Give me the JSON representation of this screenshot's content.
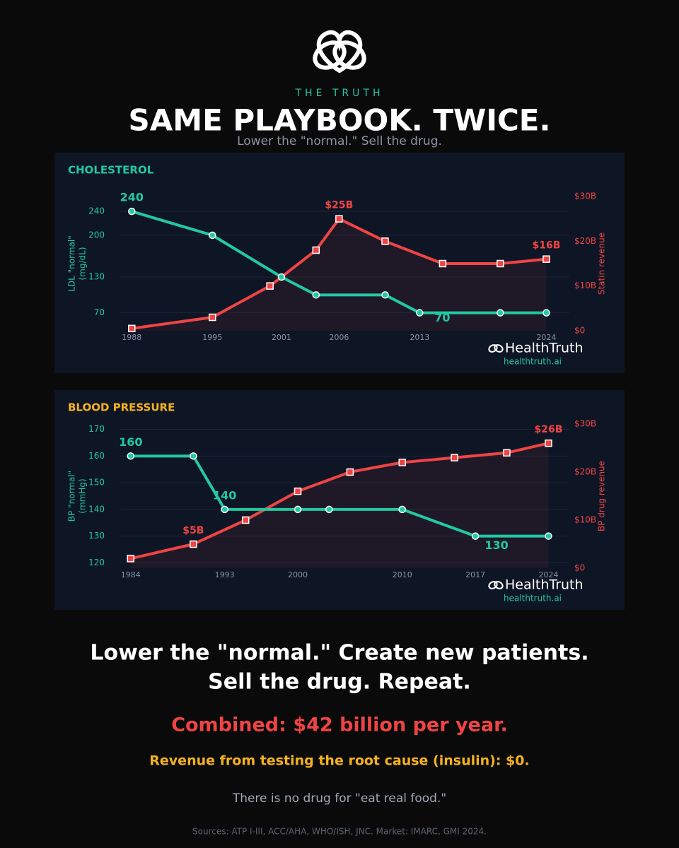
{
  "header": {
    "brand": "THE TRUTH",
    "title": "SAME PLAYBOOK. TWICE.",
    "subtitle": "Lower the \"normal.\" Sell the drug."
  },
  "chart_data": [
    {
      "type": "line",
      "title": "CHOLESTEROL",
      "ylabel": [
        "LDL \"normal\"",
        "(mg/dL)"
      ],
      "y2label": "Statin revenue",
      "xlim": [
        1987,
        2026
      ],
      "xticks": [
        1988,
        1995,
        2001,
        2006,
        2013,
        2024
      ],
      "ylim": [
        40,
        265
      ],
      "yticks": [
        70,
        130,
        200,
        240
      ],
      "y2lim": [
        0,
        30
      ],
      "y2ticks": [
        {
          "value": 0,
          "label": "$0"
        },
        {
          "value": 10,
          "label": "$10B"
        },
        {
          "value": 20,
          "label": "$20B"
        },
        {
          "value": 30,
          "label": "$30B"
        }
      ],
      "grid": true,
      "series": [
        {
          "name": "LDL \"normal\"",
          "color": "#22c9a2",
          "x": [
            1988,
            1995,
            2001,
            2004,
            2010,
            2013,
            2020,
            2024
          ],
          "values": [
            240,
            200,
            130,
            100,
            100,
            70,
            70,
            70
          ],
          "value_labels": [
            "240",
            null,
            null,
            null,
            null,
            "70",
            null,
            null
          ]
        },
        {
          "name": "Statin revenue",
          "color": "#ef4444",
          "axis": "y2",
          "x": [
            1988,
            1995,
            2000,
            2004,
            2006,
            2010,
            2015,
            2020,
            2024
          ],
          "values": [
            0.5,
            3,
            10,
            18,
            25,
            20,
            15,
            15,
            16
          ],
          "value_labels": [
            null,
            null,
            null,
            null,
            "$25B",
            null,
            null,
            null,
            "$16B"
          ]
        }
      ],
      "watermark": {
        "brand": "HealthTruth",
        "url": "healthtruth.ai"
      }
    },
    {
      "type": "line",
      "title": "BLOOD PRESSURE",
      "ylabel": [
        "BP \"normal\"",
        "(mmHg)"
      ],
      "y2label": "BP drug revenue",
      "xlim": [
        1983,
        2026
      ],
      "xticks": [
        1984,
        1993,
        2000,
        2010,
        2017,
        2024
      ],
      "ylim": [
        118,
        172
      ],
      "yticks": [
        120,
        130,
        140,
        150,
        160,
        170
      ],
      "y2lim": [
        0,
        30
      ],
      "y2ticks": [
        {
          "value": 0,
          "label": "$0"
        },
        {
          "value": 10,
          "label": "$10B"
        },
        {
          "value": 20,
          "label": "$20B"
        },
        {
          "value": 30,
          "label": "$30B"
        }
      ],
      "grid": true,
      "series": [
        {
          "name": "BP \"normal\"",
          "color": "#22c9a2",
          "x": [
            1984,
            1990,
            1993,
            2000,
            2003,
            2010,
            2017,
            2024
          ],
          "values": [
            160,
            160,
            140,
            140,
            140,
            140,
            130,
            130
          ],
          "value_labels": [
            "160",
            null,
            "140",
            null,
            null,
            null,
            "130",
            null
          ]
        },
        {
          "name": "BP drug revenue",
          "color": "#ef4444",
          "axis": "y2",
          "x": [
            1984,
            1990,
            1995,
            2000,
            2005,
            2010,
            2015,
            2020,
            2024
          ],
          "values": [
            2,
            5,
            10,
            16,
            20,
            22,
            23,
            24,
            26
          ],
          "value_labels": [
            null,
            "$5B",
            null,
            null,
            null,
            null,
            null,
            null,
            "$26B"
          ]
        }
      ],
      "watermark": {
        "brand": "HealthTruth",
        "url": "healthtruth.ai"
      }
    }
  ],
  "footer": {
    "headline": [
      "Lower the \"normal.\" Create new patients.",
      "Sell the drug. Repeat."
    ],
    "combined": "Combined: $42 billion per year.",
    "root_cause": "Revenue from testing the root cause (insulin): $0.",
    "closing": "There is no drug for \"eat real food.\"",
    "sources": "Sources: ATP I-III, ACC/AHA, WHO/ISH, JNC. Market: IMARC, GMI 2024."
  }
}
